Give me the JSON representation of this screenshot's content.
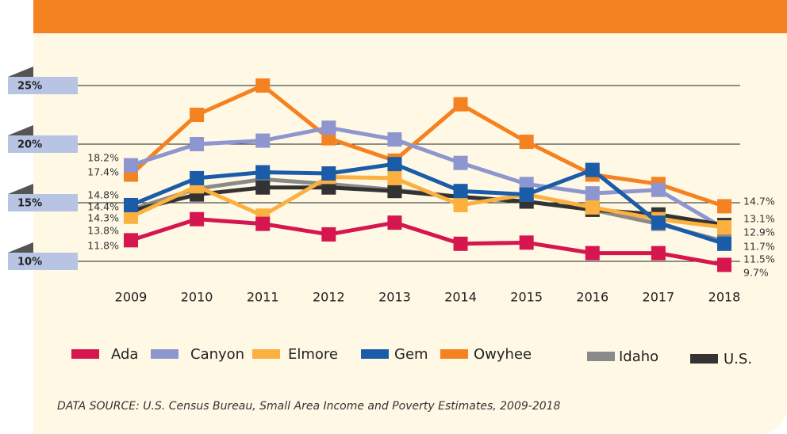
{
  "chart_data": {
    "type": "line",
    "categories": [
      "2009",
      "2010",
      "2011",
      "2012",
      "2013",
      "2014",
      "2015",
      "2016",
      "2017",
      "2018"
    ],
    "ylim": [
      9,
      26
    ],
    "yticks": [
      {
        "value": 10,
        "label": "10%"
      },
      {
        "value": 15,
        "label": "15%"
      },
      {
        "value": 20,
        "label": "20%"
      },
      {
        "value": 25,
        "label": "25%"
      }
    ],
    "grid": true,
    "series": [
      {
        "name": "Ada",
        "color": "#d6164f",
        "values": [
          11.8,
          13.6,
          13.2,
          12.3,
          13.3,
          11.5,
          11.6,
          10.7,
          10.7,
          9.7
        ],
        "value_labels": [
          "11.8%",
          null,
          null,
          null,
          null,
          null,
          null,
          null,
          null,
          "9.7%"
        ]
      },
      {
        "name": "Canyon",
        "color": "#8e96cf",
        "values": [
          18.2,
          20.0,
          20.3,
          21.4,
          20.4,
          18.4,
          16.6,
          15.8,
          16.1,
          12.8
        ],
        "value_labels": [
          "18.2%",
          null,
          null,
          null,
          null,
          null,
          null,
          null,
          null,
          null
        ]
      },
      {
        "name": "Elmore",
        "color": "#fbb040",
        "values": [
          13.8,
          16.4,
          13.9,
          17.2,
          17.1,
          14.8,
          15.7,
          14.6,
          13.6,
          12.9
        ],
        "value_labels": [
          "13.8%",
          null,
          null,
          null,
          null,
          null,
          null,
          null,
          null,
          "12.9%"
        ]
      },
      {
        "name": "Gem",
        "color": "#1a5ca8",
        "values": [
          14.8,
          17.1,
          17.6,
          17.5,
          18.3,
          16.0,
          15.7,
          17.8,
          13.3,
          11.5
        ],
        "value_labels": [
          "14.8%",
          null,
          null,
          null,
          null,
          null,
          null,
          null,
          null,
          "11.5%"
        ]
      },
      {
        "name": "Owyhee",
        "color": "#f58220",
        "values": [
          17.4,
          22.5,
          25.0,
          20.5,
          18.6,
          23.4,
          20.2,
          17.4,
          16.6,
          14.7
        ],
        "value_labels": [
          "17.4%",
          null,
          null,
          null,
          null,
          null,
          null,
          null,
          null,
          "14.7%"
        ]
      },
      {
        "name": "Idaho",
        "color": "#8a8a8a",
        "values": [
          14.4,
          16.2,
          17.0,
          16.6,
          16.1,
          15.5,
          15.1,
          14.4,
          13.2,
          11.7
        ],
        "value_labels": [
          "14.4%",
          null,
          null,
          null,
          null,
          null,
          null,
          null,
          null,
          "11.7%"
        ]
      },
      {
        "name": "U.S.",
        "color": "#333333",
        "values": [
          14.3,
          15.7,
          16.3,
          16.3,
          16.0,
          15.5,
          15.1,
          14.4,
          14.0,
          13.1
        ],
        "value_labels": [
          "14.3%",
          null,
          null,
          null,
          null,
          null,
          null,
          null,
          null,
          "13.1%"
        ]
      }
    ],
    "source": "DATA SOURCE: U.S. Census Bureau, Small Area Income and Poverty Estimates, 2009-2018"
  }
}
